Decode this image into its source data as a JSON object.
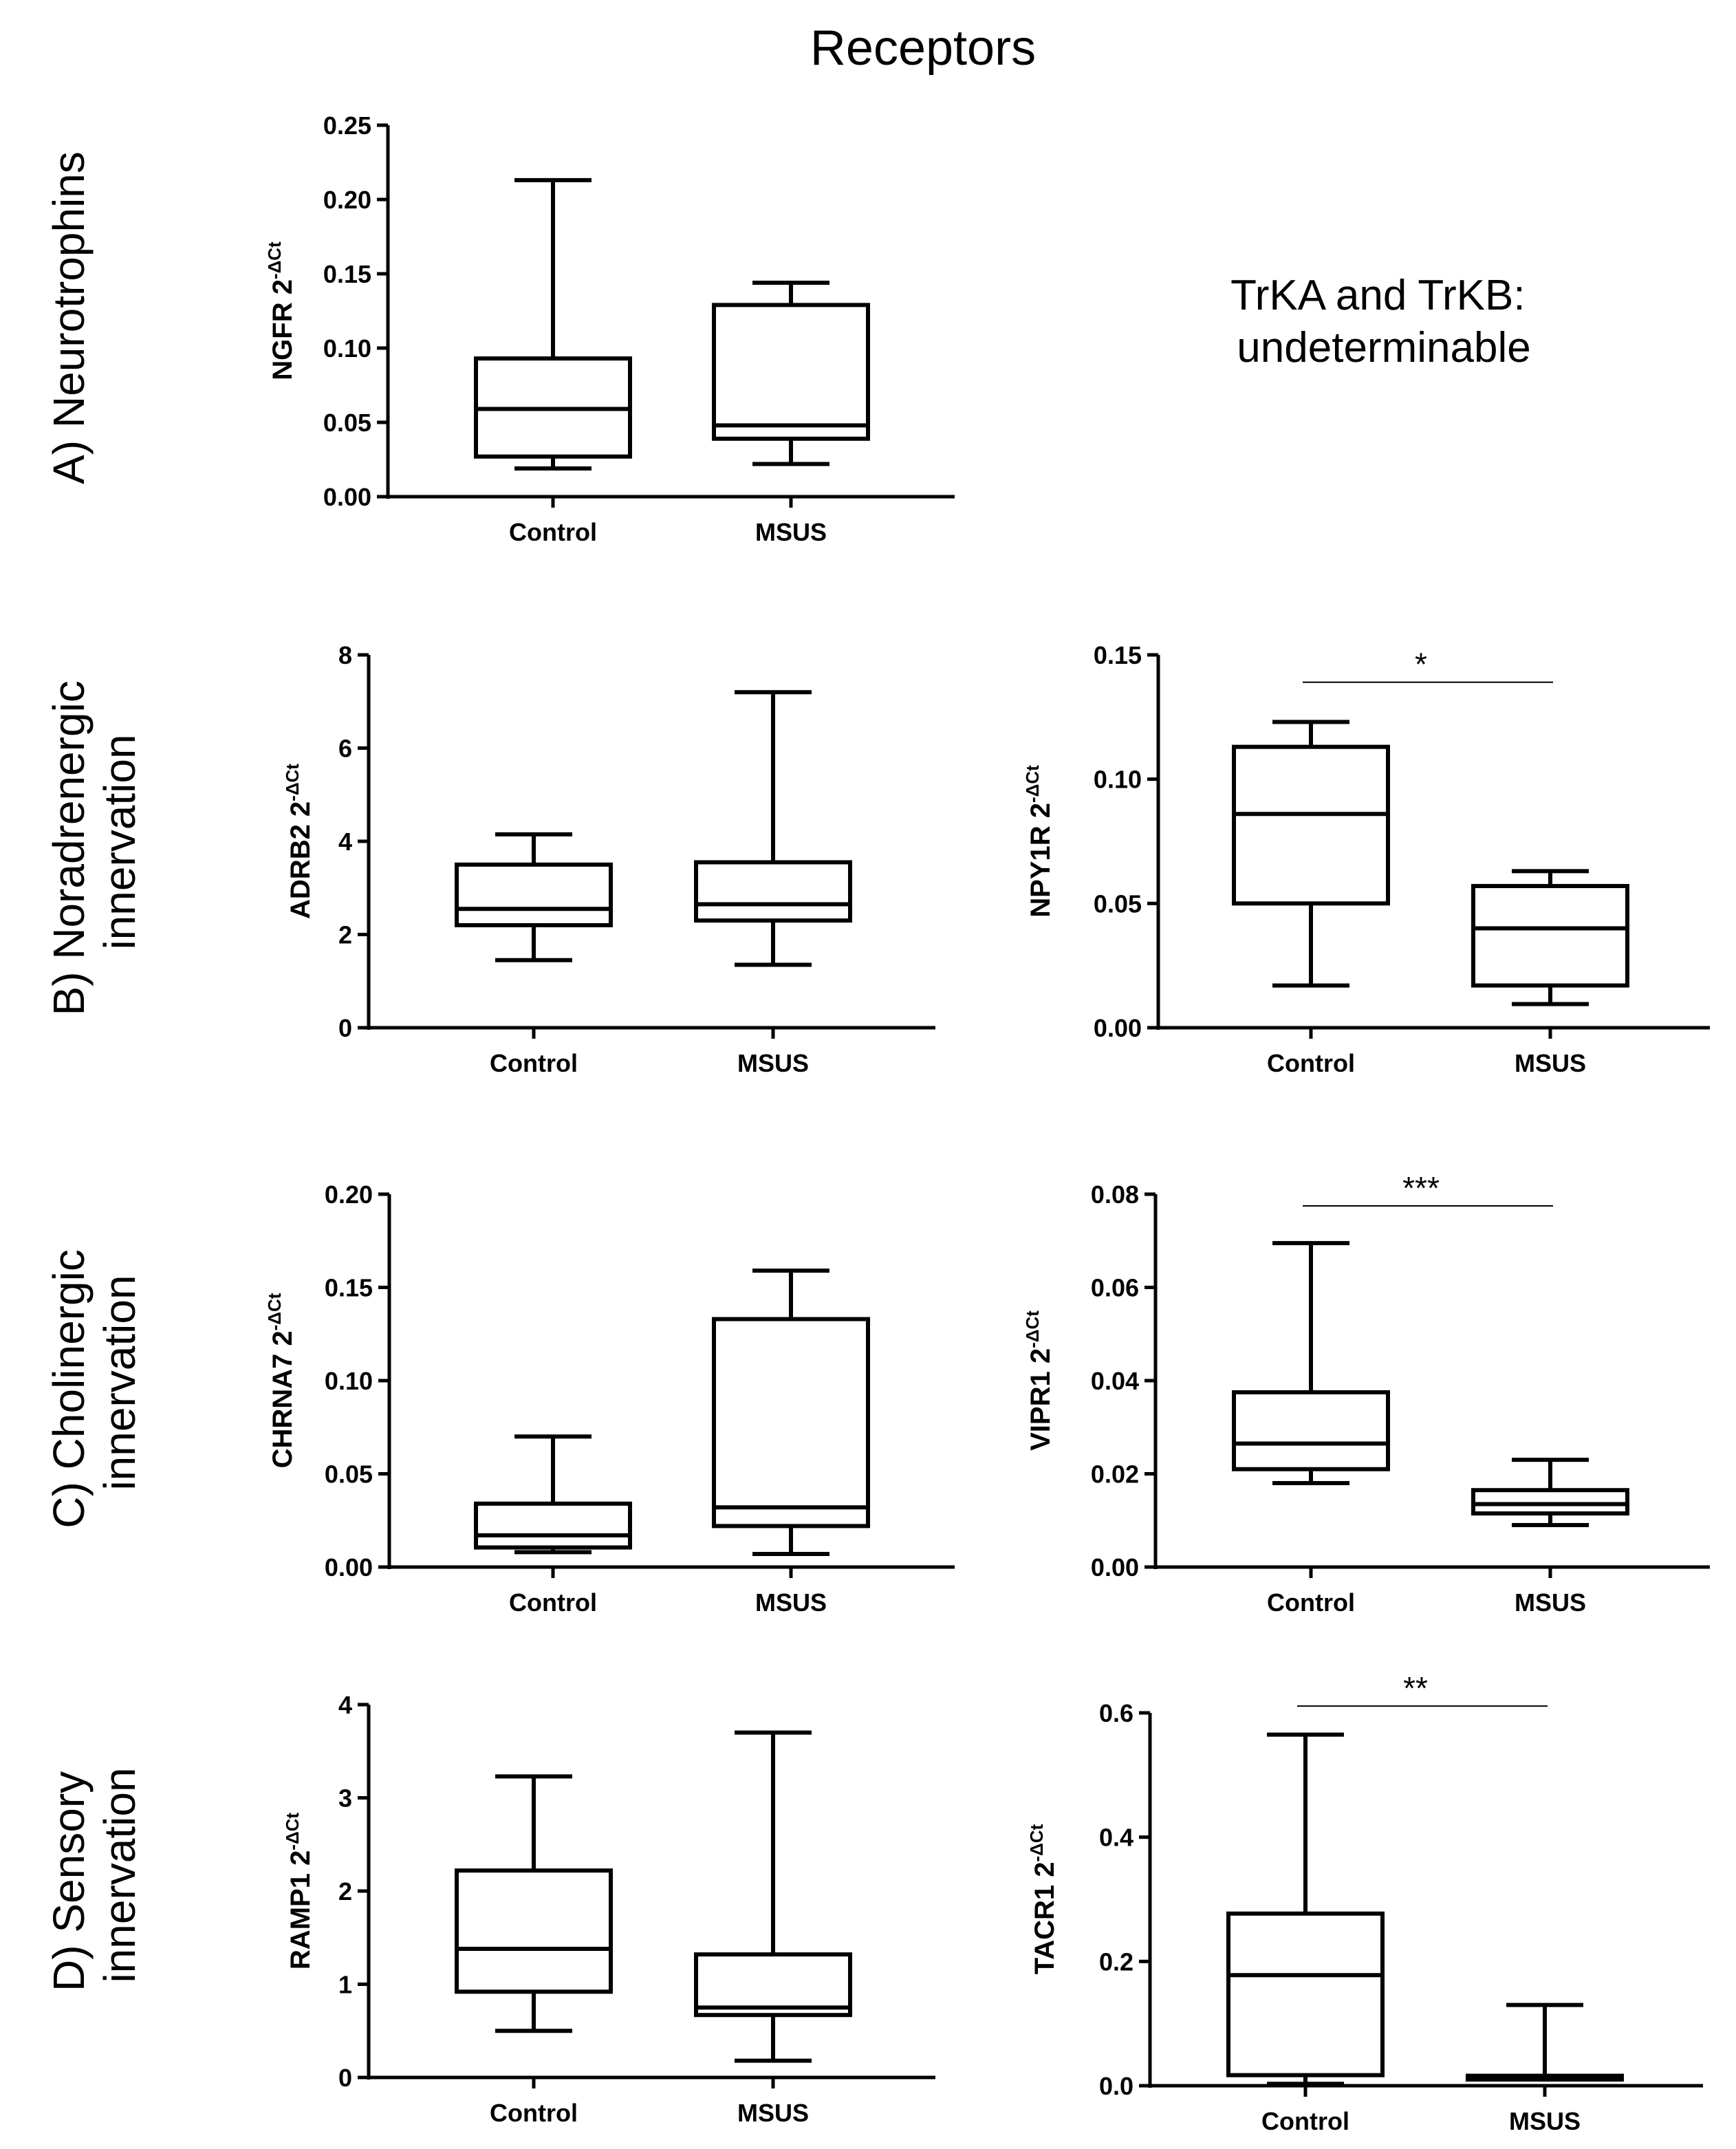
{
  "title": "Receptors",
  "row_labels": [
    {
      "id": "A",
      "lines": [
        "A) Neurotrophins"
      ]
    },
    {
      "id": "B",
      "lines": [
        "B) Noradrenergic",
        "innervation"
      ]
    },
    {
      "id": "C",
      "lines": [
        "C) Cholinergic",
        "innervation"
      ]
    },
    {
      "id": "D",
      "lines": [
        "D) Sensory",
        "innervation"
      ]
    }
  ],
  "note": {
    "lines": [
      "TrKA and TrKB:",
      "undeterminable"
    ]
  },
  "chart_data": [
    {
      "id": "ngfr",
      "type": "box",
      "ylabel_main": "NGFR 2",
      "ylabel_sup": "-ΔCt",
      "categories": [
        "Control",
        "MSUS"
      ],
      "ylim": [
        0,
        0.25
      ],
      "yticks": [
        "0.00",
        "0.05",
        "0.10",
        "0.15",
        "0.20",
        "0.25"
      ],
      "boxes": [
        {
          "min": 0.019,
          "q1": 0.027,
          "median": 0.059,
          "q3": 0.093,
          "max": 0.213
        },
        {
          "min": 0.022,
          "q1": 0.039,
          "median": 0.048,
          "q3": 0.129,
          "max": 0.144
        }
      ],
      "significance": null
    },
    {
      "id": "adrb2",
      "type": "box",
      "ylabel_main": "ADRB2 2",
      "ylabel_sup": "-ΔCt",
      "categories": [
        "Control",
        "MSUS"
      ],
      "ylim": [
        0,
        8
      ],
      "yticks": [
        "0",
        "2",
        "4",
        "6",
        "8"
      ],
      "boxes": [
        {
          "min": 1.45,
          "q1": 2.2,
          "median": 2.55,
          "q3": 3.5,
          "max": 4.15
        },
        {
          "min": 1.35,
          "q1": 2.3,
          "median": 2.65,
          "q3": 3.55,
          "max": 7.2
        }
      ],
      "significance": null
    },
    {
      "id": "npy1r",
      "type": "box",
      "ylabel_main": "NPY1R 2",
      "ylabel_sup": "-ΔCt",
      "categories": [
        "Control",
        "MSUS"
      ],
      "ylim": [
        0,
        0.15
      ],
      "yticks": [
        "0.00",
        "0.05",
        "0.10",
        "0.15"
      ],
      "boxes": [
        {
          "min": 0.017,
          "q1": 0.05,
          "median": 0.086,
          "q3": 0.113,
          "max": 0.123
        },
        {
          "min": 0.0095,
          "q1": 0.017,
          "median": 0.04,
          "q3": 0.057,
          "max": 0.063
        }
      ],
      "significance": {
        "label": "*",
        "y": 0.139
      }
    },
    {
      "id": "chrna7",
      "type": "box",
      "ylabel_main": "CHRNA7 2",
      "ylabel_sup": "-ΔCt",
      "categories": [
        "Control",
        "MSUS"
      ],
      "ylim": [
        0,
        0.2
      ],
      "yticks": [
        "0.00",
        "0.05",
        "0.10",
        "0.15",
        "0.20"
      ],
      "boxes": [
        {
          "min": 0.008,
          "q1": 0.0105,
          "median": 0.017,
          "q3": 0.034,
          "max": 0.07
        },
        {
          "min": 0.007,
          "q1": 0.022,
          "median": 0.032,
          "q3": 0.133,
          "max": 0.159
        }
      ],
      "significance": null
    },
    {
      "id": "vipr1",
      "type": "box",
      "ylabel_main": "VIPR1 2",
      "ylabel_sup": "-ΔCt",
      "categories": [
        "Control",
        "MSUS"
      ],
      "ylim": [
        0,
        0.08
      ],
      "yticks": [
        "0.00",
        "0.02",
        "0.04",
        "0.06",
        "0.08"
      ],
      "boxes": [
        {
          "min": 0.018,
          "q1": 0.021,
          "median": 0.0265,
          "q3": 0.0375,
          "max": 0.0695
        },
        {
          "min": 0.009,
          "q1": 0.0115,
          "median": 0.0135,
          "q3": 0.0165,
          "max": 0.023
        }
      ],
      "significance": {
        "label": "***",
        "y": 0.0775
      }
    },
    {
      "id": "ramp1",
      "type": "box",
      "ylabel_main": "RAMP1 2",
      "ylabel_sup": "-ΔCt",
      "categories": [
        "Control",
        "MSUS"
      ],
      "ylim": [
        0,
        4
      ],
      "yticks": [
        "0",
        "1",
        "2",
        "3",
        "4"
      ],
      "boxes": [
        {
          "min": 0.5,
          "q1": 0.92,
          "median": 1.38,
          "q3": 2.22,
          "max": 3.23
        },
        {
          "min": 0.18,
          "q1": 0.67,
          "median": 0.75,
          "q3": 1.32,
          "max": 3.7
        }
      ],
      "significance": null
    },
    {
      "id": "tacr1",
      "type": "box",
      "ylabel_main": "TACR1 2",
      "ylabel_sup": "-ΔCt",
      "categories": [
        "Control",
        "MSUS"
      ],
      "ylim": [
        0,
        0.6
      ],
      "yticks": [
        "0.0",
        "0.2",
        "0.4",
        "0.6"
      ],
      "boxes": [
        {
          "min": 0.003,
          "q1": 0.017,
          "median": 0.178,
          "q3": 0.277,
          "max": 0.565
        },
        {
          "min": 0.01,
          "q1": 0.01,
          "median": 0.014,
          "q3": 0.016,
          "max": 0.13
        }
      ],
      "significance": {
        "label": "**",
        "y": 0.611
      }
    }
  ]
}
